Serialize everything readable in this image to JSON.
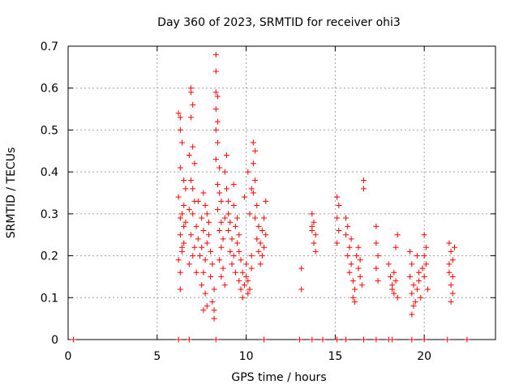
{
  "chart_data": {
    "type": "scatter",
    "title": "Day 360 of 2023, SRMTID for receiver ohi3",
    "xlabel": "GPS time / hours",
    "ylabel": "SRMTID / TECUs",
    "xlim": [
      0,
      24
    ],
    "ylim": [
      0,
      0.7
    ],
    "xticks": [
      0,
      5,
      10,
      15,
      20
    ],
    "yticks": [
      0,
      0.1,
      0.2,
      0.3,
      0.4,
      0.5,
      0.6,
      0.7
    ],
    "ytick_labels": [
      "0",
      "0.1",
      "0.2",
      "0.3",
      "0.4",
      "0.5",
      "0.6",
      "0.7"
    ],
    "grid": true,
    "marker": "+",
    "color": "#ff0000",
    "series": [
      {
        "name": "ohi3",
        "points": [
          [
            0.3,
            0
          ],
          [
            6.2,
            0
          ],
          [
            6.8,
            0
          ],
          [
            8.3,
            0
          ],
          [
            11.0,
            0
          ],
          [
            13.0,
            0
          ],
          [
            13.7,
            0
          ],
          [
            14.3,
            0
          ],
          [
            15.1,
            0
          ],
          [
            15.6,
            0
          ],
          [
            16.6,
            0
          ],
          [
            17.3,
            0
          ],
          [
            18.0,
            0
          ],
          [
            18.2,
            0
          ],
          [
            19.3,
            0
          ],
          [
            20.0,
            0
          ],
          [
            21.3,
            0
          ],
          [
            22.4,
            0
          ],
          [
            6.2,
            0.54
          ],
          [
            6.3,
            0.53
          ],
          [
            6.3,
            0.5
          ],
          [
            6.4,
            0.47
          ],
          [
            6.3,
            0.41
          ],
          [
            6.5,
            0.38
          ],
          [
            6.2,
            0.34
          ],
          [
            6.4,
            0.3
          ],
          [
            6.5,
            0.27
          ],
          [
            6.3,
            0.25
          ],
          [
            6.4,
            0.22
          ],
          [
            6.2,
            0.19
          ],
          [
            6.3,
            0.16
          ],
          [
            6.3,
            0.12
          ],
          [
            6.5,
            0.32
          ],
          [
            6.6,
            0.28
          ],
          [
            6.5,
            0.23
          ],
          [
            6.4,
            0.21
          ],
          [
            6.6,
            0.36
          ],
          [
            6.3,
            0.29
          ],
          [
            6.9,
            0.6
          ],
          [
            6.9,
            0.59
          ],
          [
            7.0,
            0.56
          ],
          [
            6.9,
            0.53
          ],
          [
            7.0,
            0.46
          ],
          [
            6.8,
            0.44
          ],
          [
            7.1,
            0.42
          ],
          [
            6.9,
            0.38
          ],
          [
            7.0,
            0.36
          ],
          [
            7.1,
            0.33
          ],
          [
            6.8,
            0.31
          ],
          [
            7.0,
            0.3
          ],
          [
            7.2,
            0.27
          ],
          [
            6.9,
            0.25
          ],
          [
            7.1,
            0.22
          ],
          [
            7.0,
            0.2
          ],
          [
            6.8,
            0.18
          ],
          [
            7.2,
            0.16
          ],
          [
            7.3,
            0.24
          ],
          [
            7.4,
            0.2
          ],
          [
            7.5,
            0.29
          ],
          [
            7.6,
            0.26
          ],
          [
            7.5,
            0.22
          ],
          [
            7.7,
            0.19
          ],
          [
            7.6,
            0.16
          ],
          [
            7.5,
            0.13
          ],
          [
            7.7,
            0.11
          ],
          [
            7.8,
            0.08
          ],
          [
            7.6,
            0.07
          ],
          [
            7.8,
            0.23
          ],
          [
            7.9,
            0.28
          ],
          [
            7.7,
            0.32
          ],
          [
            7.6,
            0.35
          ],
          [
            7.8,
            0.3
          ],
          [
            7.9,
            0.25
          ],
          [
            8.0,
            0.21
          ],
          [
            8.1,
            0.18
          ],
          [
            8.0,
            0.15
          ],
          [
            8.2,
            0.12
          ],
          [
            8.1,
            0.09
          ],
          [
            8.2,
            0.07
          ],
          [
            8.2,
            0.05
          ],
          [
            8.3,
            0.68
          ],
          [
            8.3,
            0.64
          ],
          [
            8.3,
            0.59
          ],
          [
            8.4,
            0.58
          ],
          [
            8.3,
            0.55
          ],
          [
            8.4,
            0.52
          ],
          [
            8.3,
            0.5
          ],
          [
            8.4,
            0.47
          ],
          [
            8.3,
            0.43
          ],
          [
            8.5,
            0.41
          ],
          [
            8.4,
            0.37
          ],
          [
            8.5,
            0.35
          ],
          [
            8.6,
            0.33
          ],
          [
            8.4,
            0.31
          ],
          [
            8.6,
            0.28
          ],
          [
            8.5,
            0.26
          ],
          [
            8.7,
            0.24
          ],
          [
            8.6,
            0.22
          ],
          [
            8.5,
            0.19
          ],
          [
            8.7,
            0.17
          ],
          [
            8.6,
            0.15
          ],
          [
            8.8,
            0.13
          ],
          [
            8.9,
            0.44
          ],
          [
            8.8,
            0.4
          ],
          [
            8.9,
            0.36
          ],
          [
            9.0,
            0.33
          ],
          [
            9.0,
            0.3
          ],
          [
            9.1,
            0.28
          ],
          [
            9.0,
            0.26
          ],
          [
            9.2,
            0.24
          ],
          [
            9.1,
            0.21
          ],
          [
            9.3,
            0.2
          ],
          [
            9.2,
            0.18
          ],
          [
            9.4,
            0.16
          ],
          [
            9.3,
            0.32
          ],
          [
            9.5,
            0.29
          ],
          [
            9.4,
            0.27
          ],
          [
            9.6,
            0.25
          ],
          [
            9.5,
            0.23
          ],
          [
            9.6,
            0.21
          ],
          [
            9.7,
            0.19
          ],
          [
            9.6,
            0.14
          ],
          [
            9.7,
            0.12
          ],
          [
            9.8,
            0.1
          ],
          [
            9.8,
            0.16
          ],
          [
            9.9,
            0.13
          ],
          [
            10.0,
            0.15
          ],
          [
            10.0,
            0.18
          ],
          [
            10.1,
            0.14
          ],
          [
            10.2,
            0.12
          ],
          [
            10.1,
            0.11
          ],
          [
            10.3,
            0.17
          ],
          [
            10.3,
            0.2
          ],
          [
            10.4,
            0.47
          ],
          [
            10.5,
            0.45
          ],
          [
            10.4,
            0.42
          ],
          [
            10.5,
            0.38
          ],
          [
            10.4,
            0.35
          ],
          [
            10.6,
            0.32
          ],
          [
            10.5,
            0.29
          ],
          [
            10.7,
            0.27
          ],
          [
            10.6,
            0.24
          ],
          [
            10.8,
            0.23
          ],
          [
            10.7,
            0.21
          ],
          [
            10.9,
            0.2
          ],
          [
            10.8,
            0.18
          ],
          [
            11.0,
            0.22
          ],
          [
            11.1,
            0.25
          ],
          [
            11.0,
            0.29
          ],
          [
            11.1,
            0.33
          ],
          [
            10.9,
            0.26
          ],
          [
            10.2,
            0.3
          ],
          [
            10.3,
            0.36
          ],
          [
            10.1,
            0.4
          ],
          [
            9.9,
            0.34
          ],
          [
            9.3,
            0.37
          ],
          [
            8.8,
            0.29
          ],
          [
            7.3,
            0.33
          ],
          [
            13.1,
            0.17
          ],
          [
            13.1,
            0.12
          ],
          [
            13.7,
            0.3
          ],
          [
            13.8,
            0.28
          ],
          [
            13.7,
            0.26
          ],
          [
            13.9,
            0.25
          ],
          [
            13.8,
            0.23
          ],
          [
            13.9,
            0.21
          ],
          [
            13.7,
            0.27
          ],
          [
            15.1,
            0.34
          ],
          [
            15.2,
            0.32
          ],
          [
            15.1,
            0.29
          ],
          [
            15.2,
            0.26
          ],
          [
            15.1,
            0.23
          ],
          [
            15.6,
            0.29
          ],
          [
            15.7,
            0.27
          ],
          [
            15.6,
            0.25
          ],
          [
            15.8,
            0.22
          ],
          [
            15.7,
            0.2
          ],
          [
            15.9,
            0.18
          ],
          [
            15.8,
            0.16
          ],
          [
            16.0,
            0.14
          ],
          [
            16.1,
            0.12
          ],
          [
            16.0,
            0.1
          ],
          [
            16.1,
            0.09
          ],
          [
            16.2,
            0.2
          ],
          [
            16.3,
            0.17
          ],
          [
            16.4,
            0.15
          ],
          [
            16.5,
            0.13
          ],
          [
            16.3,
            0.22
          ],
          [
            16.6,
            0.38
          ],
          [
            16.6,
            0.36
          ],
          [
            15.9,
            0.24
          ],
          [
            16.4,
            0.19
          ],
          [
            17.3,
            0.27
          ],
          [
            17.3,
            0.23
          ],
          [
            17.4,
            0.2
          ],
          [
            17.3,
            0.17
          ],
          [
            17.4,
            0.14
          ],
          [
            18.0,
            0.18
          ],
          [
            18.1,
            0.15
          ],
          [
            18.2,
            0.13
          ],
          [
            18.3,
            0.11
          ],
          [
            18.4,
            0.14
          ],
          [
            18.5,
            0.25
          ],
          [
            18.4,
            0.22
          ],
          [
            18.5,
            0.1
          ],
          [
            18.3,
            0.16
          ],
          [
            18.2,
            0.12
          ],
          [
            19.2,
            0.21
          ],
          [
            19.3,
            0.18
          ],
          [
            19.2,
            0.15
          ],
          [
            19.4,
            0.13
          ],
          [
            19.3,
            0.11
          ],
          [
            19.5,
            0.09
          ],
          [
            19.6,
            0.12
          ],
          [
            19.7,
            0.14
          ],
          [
            19.8,
            0.1
          ],
          [
            19.9,
            0.17
          ],
          [
            20.0,
            0.15
          ],
          [
            20.0,
            0.25
          ],
          [
            20.1,
            0.22
          ],
          [
            20.0,
            0.2
          ],
          [
            20.2,
            0.12
          ],
          [
            19.4,
            0.08
          ],
          [
            19.3,
            0.06
          ],
          [
            19.7,
            0.16
          ],
          [
            20.1,
            0.18
          ],
          [
            19.6,
            0.2
          ],
          [
            21.4,
            0.23
          ],
          [
            21.5,
            0.21
          ],
          [
            21.4,
            0.18
          ],
          [
            21.6,
            0.15
          ],
          [
            21.5,
            0.13
          ],
          [
            21.6,
            0.11
          ],
          [
            21.5,
            0.09
          ],
          [
            21.7,
            0.22
          ],
          [
            21.6,
            0.19
          ],
          [
            21.4,
            0.16
          ]
        ]
      }
    ]
  }
}
